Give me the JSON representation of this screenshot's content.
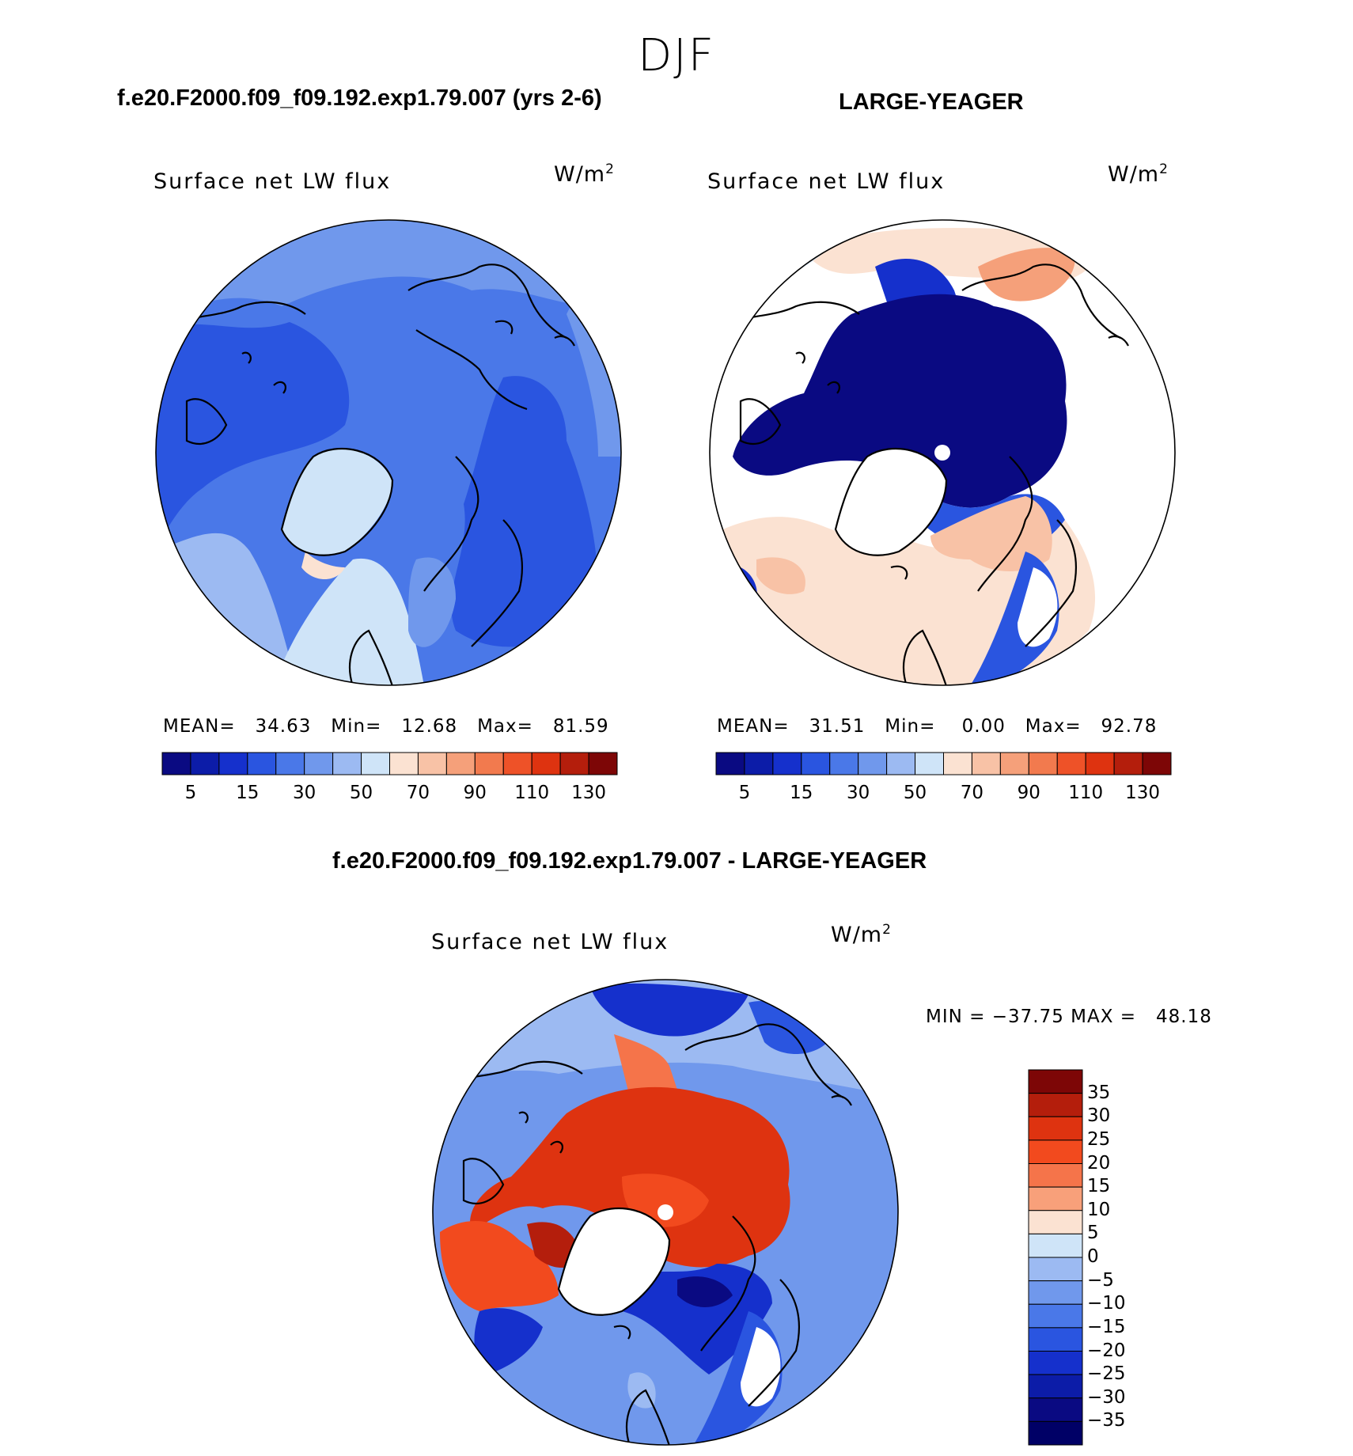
{
  "season": "DJF",
  "panels": {
    "model": {
      "title": "f.e20.F2000.f09_f09.192.exp1.79.007 (yrs 2-6)",
      "field_label": "Surface net LW flux",
      "units": "W/m",
      "units_sup": "2",
      "stats_text": "MEAN=   34.63   Min=   12.68   Max=   81.59"
    },
    "obs": {
      "title": "LARGE-YEAGER",
      "field_label": "Surface net LW flux",
      "units": "W/m",
      "units_sup": "2",
      "stats_text": "MEAN=   31.51   Min=    0.00   Max=   92.78"
    },
    "diff": {
      "title": "f.e20.F2000.f09_f09.192.exp1.79.007 - LARGE-YEAGER",
      "field_label": "Surface net LW flux",
      "units": "W/m",
      "units_sup": "2",
      "minmax_text": "MIN = −37.75 MAX =   48.18"
    }
  },
  "chart_data": [
    {
      "type": "map-colorbar",
      "name": "field-colorbar",
      "tick_labels": [
        "5",
        "15",
        "30",
        "50",
        "70",
        "90",
        "110",
        "130"
      ],
      "colors": [
        "#0a0a82",
        "#0c1ca8",
        "#1530cc",
        "#2a55e0",
        "#4a78e8",
        "#7098ec",
        "#9cbaf2",
        "#cfe4f8",
        "#fbe2d2",
        "#f8c2a6",
        "#f5a07a",
        "#f27a4e",
        "#ee5228",
        "#de3310",
        "#b41e0c",
        "#7d0606"
      ]
    },
    {
      "type": "map-colorbar",
      "name": "difference-colorbar",
      "tick_labels": [
        "35",
        "30",
        "25",
        "20",
        "15",
        "10",
        "5",
        "0",
        "−5",
        "−10",
        "−15",
        "−20",
        "−25",
        "−30",
        "−35"
      ],
      "colors": [
        "#7d0606",
        "#b41e0c",
        "#de3310",
        "#f24a1e",
        "#f5744a",
        "#f8a07a",
        "#fbe2d2",
        "#cfe4f8",
        "#9cbaf2",
        "#7098ec",
        "#4a78e8",
        "#2a55e0",
        "#1530cc",
        "#0c1ca8",
        "#0a0a82",
        "#000066"
      ]
    }
  ]
}
